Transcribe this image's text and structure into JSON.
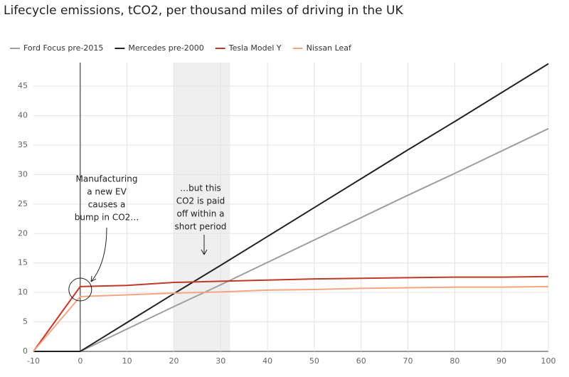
{
  "chart_data": {
    "type": "line",
    "title": "Lifecycle emissions, tCO2, per thousand miles of driving in the UK",
    "x": [
      -10,
      0,
      10,
      20,
      30,
      40,
      50,
      60,
      70,
      80,
      90,
      100
    ],
    "series": [
      {
        "name": "Ford Focus pre-2015",
        "color": "#9e9e9e",
        "values": [
          0,
          0,
          3.8,
          7.6,
          11.3,
          15.1,
          18.9,
          22.7,
          26.5,
          30.2,
          34,
          37.8
        ]
      },
      {
        "name": "Mercedes pre-2000",
        "color": "#222222",
        "values": [
          0,
          0,
          4.9,
          9.8,
          14.6,
          19.5,
          24.4,
          29.3,
          34.2,
          39,
          43.9,
          48.8
        ]
      },
      {
        "name": "Tesla Model Y",
        "color": "#c0392b",
        "values": [
          0,
          11,
          11.2,
          11.7,
          11.9,
          12.1,
          12.3,
          12.4,
          12.5,
          12.6,
          12.6,
          12.7
        ]
      },
      {
        "name": "Nissan Leaf",
        "color": "#f4a582",
        "values": [
          0,
          9.3,
          9.6,
          9.9,
          10.1,
          10.4,
          10.5,
          10.7,
          10.8,
          10.9,
          10.9,
          11
        ]
      }
    ],
    "xlim": [
      -10,
      100
    ],
    "xticks": [
      -10,
      0,
      10,
      20,
      30,
      40,
      50,
      60,
      70,
      80,
      90,
      100
    ],
    "ylim": [
      0,
      49
    ],
    "yticks": [
      0,
      5,
      10,
      15,
      20,
      25,
      30,
      35,
      40,
      45
    ],
    "grid": true,
    "legend": "top-left",
    "highlight": [
      20,
      32
    ],
    "vline": 0,
    "annotations": [
      {
        "lines": [
          "Manufacturing",
          "a new EV",
          "causes a",
          "bump in CO2…"
        ]
      },
      {
        "lines": [
          "…but this",
          "CO2 is paid",
          "off within a",
          "short period"
        ]
      }
    ]
  }
}
